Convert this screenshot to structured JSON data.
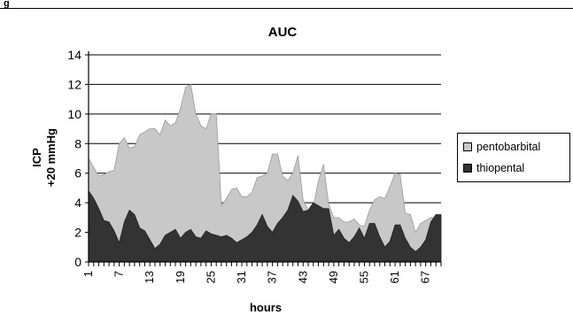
{
  "figure_label": "g",
  "chart_data": {
    "type": "area",
    "title": "AUC",
    "xlabel": "hours",
    "ylabel": [
      "ICP",
      "+20 mmHg"
    ],
    "ylim": [
      0,
      14
    ],
    "yticks": [
      0,
      2,
      4,
      6,
      8,
      10,
      12,
      14
    ],
    "x_tick_labels": [
      "1",
      "7",
      "13",
      "19",
      "25",
      "31",
      "37",
      "43",
      "49",
      "55",
      "61",
      "67"
    ],
    "gridlines": true,
    "legend_position": "right",
    "x": [
      1,
      2,
      3,
      4,
      5,
      6,
      7,
      8,
      9,
      10,
      11,
      12,
      13,
      14,
      15,
      16,
      17,
      18,
      19,
      20,
      21,
      22,
      23,
      24,
      25,
      26,
      27,
      28,
      29,
      30,
      31,
      32,
      33,
      34,
      35,
      36,
      37,
      38,
      39,
      40,
      41,
      42,
      43,
      44,
      45,
      46,
      47,
      48,
      49,
      50,
      51,
      52,
      53,
      54,
      55,
      56,
      57,
      58,
      59,
      60,
      61,
      62,
      63,
      64,
      65,
      66,
      67,
      68,
      69,
      70
    ],
    "series": [
      {
        "name": "pentobarbital",
        "color": "#c8c8c8",
        "values": [
          7.0,
          6.4,
          5.8,
          5.9,
          6.1,
          6.2,
          8.0,
          8.4,
          7.7,
          7.8,
          8.6,
          8.8,
          9.0,
          9.0,
          8.6,
          9.6,
          9.2,
          9.4,
          10.4,
          11.8,
          12.0,
          10.0,
          9.2,
          9.0,
          10.0,
          10.0,
          3.8,
          4.3,
          4.9,
          5.0,
          4.4,
          4.4,
          4.7,
          5.7,
          5.8,
          6.0,
          7.3,
          7.3,
          5.8,
          5.5,
          6.0,
          7.2,
          4.2,
          3.5,
          3.7,
          5.5,
          6.6,
          3.9,
          3.0,
          3.0,
          2.7,
          2.7,
          2.9,
          2.5,
          2.4,
          3.5,
          4.2,
          4.4,
          4.3,
          5.1,
          6.0,
          5.9,
          3.3,
          3.2,
          2.0,
          2.6,
          2.8,
          3.0,
          3.0,
          3.1
        ]
      },
      {
        "name": "thiopental",
        "color": "#333333",
        "values": [
          4.8,
          4.3,
          3.6,
          2.8,
          2.7,
          2.1,
          1.3,
          2.7,
          3.5,
          3.2,
          2.3,
          2.1,
          1.5,
          0.9,
          1.2,
          1.8,
          2.0,
          2.2,
          1.6,
          2.0,
          2.2,
          1.7,
          1.6,
          2.1,
          1.9,
          1.8,
          1.7,
          1.8,
          1.6,
          1.3,
          1.5,
          1.7,
          2.0,
          2.5,
          3.2,
          2.4,
          2.0,
          2.6,
          3.0,
          3.5,
          4.5,
          4.1,
          3.4,
          3.5,
          4.0,
          3.8,
          3.6,
          3.6,
          1.8,
          2.2,
          1.6,
          1.3,
          1.7,
          2.3,
          1.6,
          2.6,
          2.6,
          1.7,
          1.0,
          1.4,
          2.5,
          2.5,
          1.6,
          1.0,
          0.7,
          1.0,
          1.5,
          2.7,
          3.2,
          3.2
        ]
      }
    ]
  }
}
